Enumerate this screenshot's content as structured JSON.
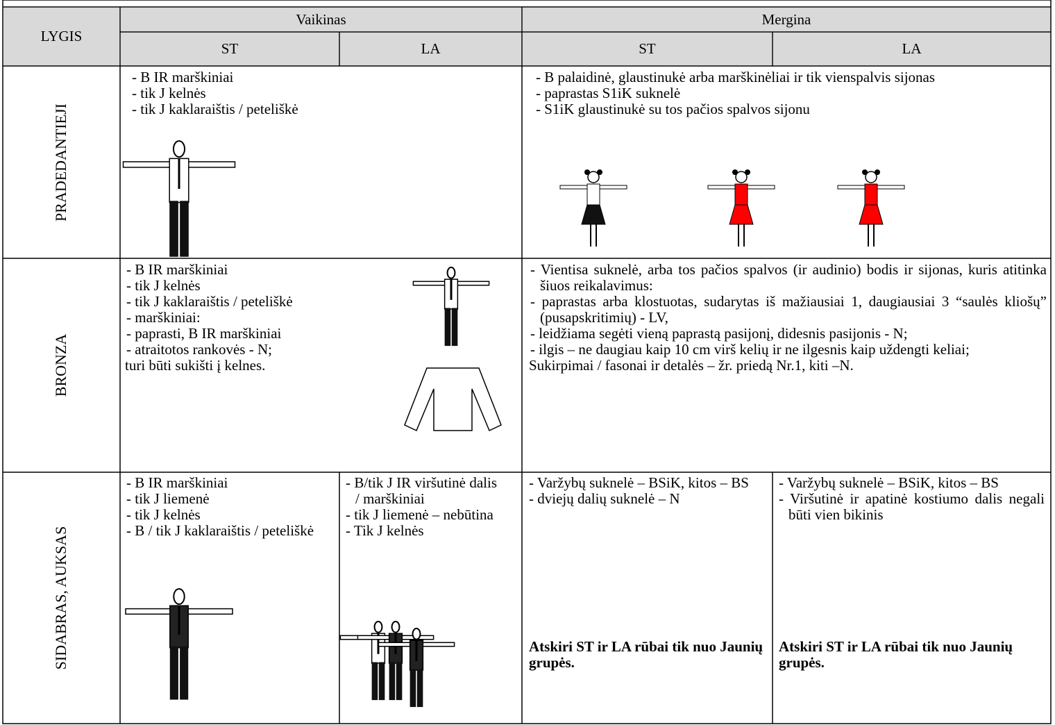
{
  "table": {
    "header": {
      "level": "LYGIS",
      "groups": [
        "Vaikinas",
        "Mergina"
      ],
      "columns": [
        "ST",
        "LA",
        "ST",
        "LA"
      ]
    },
    "rows": [
      {
        "label": "PRADEDANTIEJI",
        "boy": [
          "- B IR marškiniai",
          "- tik J kelnės",
          "- tik J kaklaraištis / peteliškė"
        ],
        "girl": [
          "- B palaidinė, glaustinukė arba marškinėliai ir tik vienspalvis sijonas",
          "- paprastas S1iK suknelė",
          "- S1iK glaustinukė su tos pačios spalvos sijonu"
        ]
      },
      {
        "label": "BRONZA",
        "boy": [
          "- B IR marškiniai",
          "- tik J kelnės",
          "- tik J kaklaraištis / peteliškė",
          "- marškiniai:",
          "- paprasti, B IR marškiniai",
          "- atraitotos rankovės  - N;",
          "turi būti sukišti į kelnes."
        ],
        "girl": [
          "- Vientisa suknelė, arba tos pačios spalvos (ir audinio) bodis ir sijonas, kuris atitinka šiuos reikalavimus:",
          "- paprastas arba klostuotas, sudarytas iš mažiausiai 1, daugiausiai 3 “saulės kliošų” (pusapskritimių) - LV,",
          "- leidžiama segėti vieną paprastą pasijonį, didesnis pasijonis  - N;",
          "- ilgis – ne daugiau kaip 10 cm virš kelių ir ne ilgesnis kaip uždengti keliai;",
          "Sukirpimai / fasonai ir detalės – žr. priedą Nr.1, kiti –N."
        ]
      },
      {
        "label": "SIDABRAS, AUKSAS",
        "boy_st": [
          "- B IR marškiniai",
          "- tik J liemenė",
          "- tik J kelnės",
          "- B / tik J kaklaraištis / peteliškė"
        ],
        "boy_la": [
          "- B/tik J IR viršutinė dalis / marškiniai",
          "- tik J liemenė – nebūtina",
          "- Tik J kelnės"
        ],
        "girl_st": [
          "- Varžybų suknelė – BSiK, kitos – BS",
          "- dviejų dalių suknelė – N"
        ],
        "girl_st_note": "Atskiri ST ir LA rūbai tik nuo Jaunių grupės.",
        "girl_la": [
          "- Varžybų suknelė – BSiK, kitos – BS",
          "- Viršutinė ir apatinė kostiumo dalis negali būti vien bikinis"
        ],
        "girl_la_note": "Atskiri ST ir LA rūbai tik nuo Jaunių grupės."
      }
    ]
  }
}
